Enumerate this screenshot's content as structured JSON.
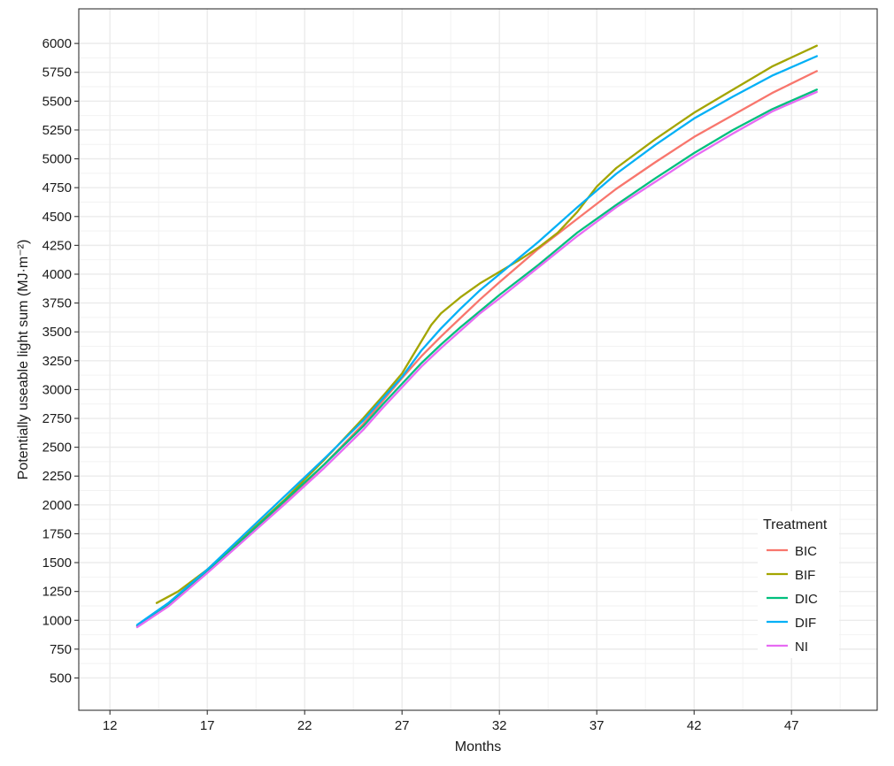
{
  "chart_data": {
    "type": "line",
    "xlabel": "Months",
    "ylabel": "Potentially useable light sum (MJ·m⁻²)",
    "xlim": [
      10.4,
      51.4
    ],
    "ylim": [
      220,
      6300
    ],
    "x_ticks": [
      12,
      17,
      22,
      27,
      32,
      37,
      42,
      47
    ],
    "y_ticks": [
      500,
      750,
      1000,
      1250,
      1500,
      1750,
      2000,
      2250,
      2500,
      2750,
      3000,
      3250,
      3500,
      3750,
      4000,
      4250,
      4500,
      4750,
      5000,
      5250,
      5500,
      5750,
      6000
    ],
    "grid": true,
    "legend": {
      "title": "Treatment",
      "position": "bottom-right"
    },
    "series": [
      {
        "name": "BIC",
        "color": "#F8766D",
        "points": [
          [
            13.4,
            950
          ],
          [
            15,
            1140
          ],
          [
            17,
            1420
          ],
          [
            19,
            1720
          ],
          [
            21,
            2020
          ],
          [
            23,
            2350
          ],
          [
            25,
            2700
          ],
          [
            26,
            2900
          ],
          [
            27,
            3100
          ],
          [
            28,
            3290
          ],
          [
            29,
            3460
          ],
          [
            30,
            3620
          ],
          [
            31,
            3780
          ],
          [
            32,
            3930
          ],
          [
            34,
            4220
          ],
          [
            36,
            4480
          ],
          [
            38,
            4740
          ],
          [
            40,
            4970
          ],
          [
            42,
            5190
          ],
          [
            44,
            5380
          ],
          [
            46,
            5570
          ],
          [
            48.3,
            5760
          ]
        ]
      },
      {
        "name": "BIF",
        "color": "#A3A500",
        "points": [
          [
            14.4,
            1150
          ],
          [
            15.5,
            1250
          ],
          [
            17,
            1440
          ],
          [
            19,
            1740
          ],
          [
            21,
            2050
          ],
          [
            23,
            2390
          ],
          [
            25,
            2750
          ],
          [
            26,
            2940
          ],
          [
            27,
            3140
          ],
          [
            27.5,
            3280
          ],
          [
            28,
            3420
          ],
          [
            28.5,
            3560
          ],
          [
            29,
            3660
          ],
          [
            30,
            3800
          ],
          [
            31,
            3920
          ],
          [
            32,
            4020
          ],
          [
            33,
            4120
          ],
          [
            34,
            4230
          ],
          [
            35,
            4360
          ],
          [
            36,
            4540
          ],
          [
            37,
            4760
          ],
          [
            38,
            4920
          ],
          [
            40,
            5170
          ],
          [
            42,
            5400
          ],
          [
            44,
            5600
          ],
          [
            46,
            5800
          ],
          [
            48.3,
            5980
          ]
        ]
      },
      {
        "name": "DIC",
        "color": "#00BF7D",
        "points": [
          [
            13.4,
            950
          ],
          [
            15,
            1130
          ],
          [
            17,
            1420
          ],
          [
            19,
            1730
          ],
          [
            21,
            2040
          ],
          [
            23,
            2350
          ],
          [
            25,
            2680
          ],
          [
            26,
            2870
          ],
          [
            27,
            3050
          ],
          [
            28,
            3230
          ],
          [
            29,
            3390
          ],
          [
            30,
            3540
          ],
          [
            31,
            3680
          ],
          [
            32,
            3820
          ],
          [
            34,
            4080
          ],
          [
            36,
            4360
          ],
          [
            38,
            4600
          ],
          [
            40,
            4830
          ],
          [
            42,
            5050
          ],
          [
            44,
            5250
          ],
          [
            46,
            5430
          ],
          [
            48.3,
            5600
          ]
        ]
      },
      {
        "name": "DIF",
        "color": "#00B0F6",
        "points": [
          [
            13.4,
            960
          ],
          [
            15,
            1150
          ],
          [
            17,
            1440
          ],
          [
            19,
            1760
          ],
          [
            21,
            2080
          ],
          [
            23,
            2400
          ],
          [
            25,
            2730
          ],
          [
            26,
            2920
          ],
          [
            27,
            3110
          ],
          [
            28,
            3340
          ],
          [
            29,
            3530
          ],
          [
            30,
            3700
          ],
          [
            31,
            3860
          ],
          [
            32,
            4000
          ],
          [
            34,
            4280
          ],
          [
            36,
            4580
          ],
          [
            38,
            4870
          ],
          [
            40,
            5120
          ],
          [
            42,
            5350
          ],
          [
            44,
            5540
          ],
          [
            46,
            5720
          ],
          [
            48.3,
            5890
          ]
        ]
      },
      {
        "name": "NI",
        "color": "#E76BF3",
        "points": [
          [
            13.4,
            940
          ],
          [
            15,
            1120
          ],
          [
            17,
            1410
          ],
          [
            19,
            1710
          ],
          [
            21,
            2010
          ],
          [
            23,
            2320
          ],
          [
            25,
            2650
          ],
          [
            26,
            2840
          ],
          [
            27,
            3020
          ],
          [
            28,
            3200
          ],
          [
            29,
            3360
          ],
          [
            30,
            3510
          ],
          [
            31,
            3660
          ],
          [
            32,
            3790
          ],
          [
            34,
            4060
          ],
          [
            36,
            4330
          ],
          [
            38,
            4580
          ],
          [
            40,
            4800
          ],
          [
            42,
            5020
          ],
          [
            44,
            5220
          ],
          [
            46,
            5410
          ],
          [
            48.3,
            5580
          ]
        ]
      }
    ]
  }
}
